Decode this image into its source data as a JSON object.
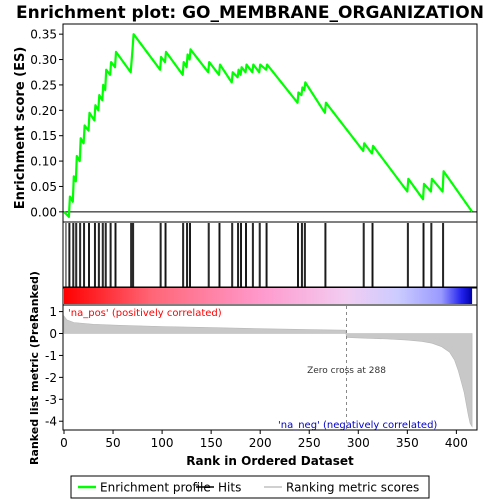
{
  "chart_data": {
    "type": "line",
    "title": "Enrichment plot: GO_MEMBRANE_ORGANIZATION",
    "es_panel": {
      "ylabel": "Enrichment score (ES)",
      "ylim": [
        -0.02,
        0.37
      ],
      "yticks": [
        0.0,
        0.05,
        0.1,
        0.15,
        0.2,
        0.25,
        0.3,
        0.35
      ],
      "ytick_labels": [
        "0.00",
        "0.05",
        "0.10",
        "0.15",
        "0.20",
        "0.25",
        "0.30",
        "0.35"
      ],
      "series": [
        {
          "name": "Enrichment profile",
          "color": "#00ff00",
          "x": [
            0,
            5,
            6,
            9,
            10,
            12,
            13,
            16,
            17,
            20,
            21,
            25,
            26,
            31,
            32,
            35,
            36,
            39,
            40,
            42,
            43,
            47,
            48,
            52,
            53,
            68,
            69,
            70,
            71,
            98,
            99,
            103,
            104,
            121,
            122,
            125,
            126,
            128,
            129,
            147,
            148,
            158,
            159,
            171,
            172,
            177,
            178,
            180,
            181,
            185,
            186,
            192,
            193,
            199,
            200,
            206,
            207,
            238,
            239,
            242,
            243,
            245,
            246,
            266,
            267,
            305,
            306,
            314,
            315,
            350,
            351,
            366,
            367,
            374,
            375,
            386,
            387,
            416
          ],
          "y": [
            0.0,
            -0.01,
            0.03,
            0.02,
            0.07,
            0.06,
            0.11,
            0.1,
            0.145,
            0.135,
            0.17,
            0.16,
            0.195,
            0.18,
            0.21,
            0.2,
            0.23,
            0.22,
            0.25,
            0.24,
            0.28,
            0.27,
            0.295,
            0.285,
            0.315,
            0.275,
            0.3,
            0.325,
            0.35,
            0.28,
            0.305,
            0.295,
            0.315,
            0.27,
            0.295,
            0.285,
            0.31,
            0.3,
            0.32,
            0.275,
            0.295,
            0.27,
            0.29,
            0.255,
            0.275,
            0.265,
            0.28,
            0.27,
            0.285,
            0.275,
            0.29,
            0.275,
            0.29,
            0.275,
            0.29,
            0.28,
            0.29,
            0.215,
            0.235,
            0.23,
            0.245,
            0.24,
            0.255,
            0.195,
            0.215,
            0.12,
            0.135,
            0.115,
            0.13,
            0.04,
            0.065,
            0.025,
            0.055,
            0.04,
            0.065,
            0.04,
            0.08,
            0.0
          ]
        }
      ]
    },
    "hits_panel": {
      "hit_positions": [
        2,
        5,
        6,
        9,
        10,
        12,
        13,
        16,
        17,
        20,
        21,
        25,
        26,
        31,
        32,
        35,
        36,
        39,
        40,
        42,
        43,
        47,
        48,
        52,
        53,
        68,
        69,
        70,
        71,
        98,
        99,
        103,
        104,
        121,
        122,
        125,
        126,
        128,
        129,
        147,
        148,
        158,
        159,
        171,
        172,
        177,
        178,
        180,
        181,
        185,
        186,
        192,
        193,
        199,
        200,
        206,
        207,
        238,
        239,
        242,
        243,
        245,
        246,
        266,
        267,
        305,
        306,
        314,
        315,
        350,
        351,
        366,
        367,
        374,
        375,
        386,
        387
      ]
    },
    "metric_panel": {
      "ylabel": "Ranked list metric (PreRanked)",
      "xlabel": "Rank in Ordered Dataset",
      "ylim": [
        -4.4,
        1.3
      ],
      "yticks": [
        1,
        0,
        -1,
        -2,
        -3,
        -4
      ],
      "ytick_labels": [
        "1",
        "0",
        "-1",
        "-2",
        "-3",
        "-4"
      ],
      "xlim": [
        0,
        420
      ],
      "xticks": [
        0,
        50,
        100,
        150,
        200,
        250,
        300,
        350,
        400
      ],
      "xtick_labels": [
        "0",
        "50",
        "100",
        "150",
        "200",
        "250",
        "300",
        "350",
        "400"
      ],
      "profile": {
        "rank": [
          0,
          3,
          10,
          30,
          60,
          100,
          150,
          200,
          250,
          287,
          288,
          300,
          330,
          350,
          365,
          375,
          385,
          393,
          398,
          402,
          405,
          408,
          410,
          412,
          414,
          416
        ],
        "value": [
          0.8,
          0.62,
          0.5,
          0.42,
          0.37,
          0.32,
          0.27,
          0.22,
          0.18,
          0.15,
          -0.18,
          -0.2,
          -0.25,
          -0.3,
          -0.36,
          -0.44,
          -0.6,
          -0.85,
          -1.2,
          -1.7,
          -2.2,
          -2.7,
          -3.2,
          -3.7,
          -4.1,
          -4.25
        ]
      },
      "zero_cross_label": "Zero cross at 288",
      "zero_cross_rank": 288,
      "pos_label": "'na_pos' (positively correlated)",
      "neg_label": "'na_neg' (negatively correlated)",
      "pos_color": "#ff0000",
      "neg_color": "#0000cc"
    },
    "colorbar": {
      "stops": [
        {
          "rank": 0,
          "color": "#ff0000"
        },
        {
          "rank": 90,
          "color": "#ff6677"
        },
        {
          "rank": 200,
          "color": "#ff99cc"
        },
        {
          "rank": 288,
          "color": "#f2cdf2"
        },
        {
          "rank": 340,
          "color": "#ccccff"
        },
        {
          "rank": 385,
          "color": "#9999ff"
        },
        {
          "rank": 405,
          "color": "#2222ee"
        },
        {
          "rank": 416,
          "color": "#0000aa"
        }
      ]
    },
    "legend": {
      "items": [
        {
          "label": "Enrichment profile",
          "color": "#00ff00",
          "kind": "line"
        },
        {
          "label": "Hits",
          "color": "#000000",
          "kind": "line"
        },
        {
          "label": "Ranking metric scores",
          "color": "#c0c0c0",
          "kind": "line"
        }
      ]
    }
  }
}
